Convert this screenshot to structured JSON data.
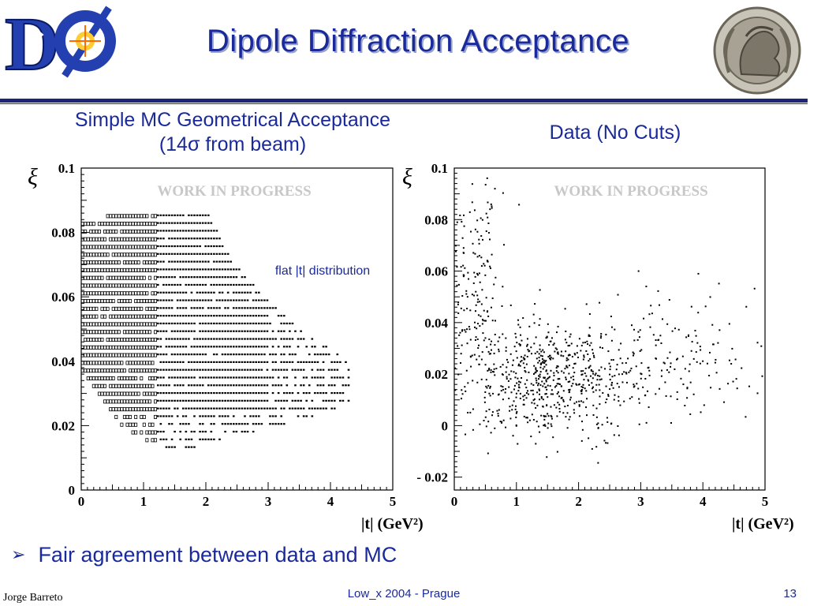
{
  "slide": {
    "title": "Dipole Diffraction Acceptance",
    "subtitle_left_line1": "Simple MC Geometrical Acceptance",
    "subtitle_left_line2": "(14σ from beam)",
    "subtitle_right": "Data (No Cuts)",
    "bullet": "Fair agreement between data and MC",
    "footer_author": "Jorge Barreto",
    "footer_event": "Low_x 2004 - Prague",
    "page_number": "13"
  },
  "chart_data": [
    {
      "type": "scatter",
      "title": "",
      "xlabel": "|t| (GeV²)",
      "ylabel": "ξ",
      "xlim": [
        0,
        5
      ],
      "ylim": [
        0,
        0.1
      ],
      "x_ticks": [
        "0",
        "1",
        "2",
        "3",
        "4",
        "5"
      ],
      "y_ticks": [
        "0",
        "0.02",
        "0.04",
        "0.06",
        "0.08",
        "0.1"
      ],
      "watermark": "WORK IN PROGRESS",
      "annotation": "flat |t| distribution",
      "grid": false,
      "acceptance_boundary": [
        [
          0,
          0.085
        ],
        [
          2,
          0.088
        ],
        [
          2.3,
          0.075
        ],
        [
          2.7,
          0.065
        ],
        [
          3.5,
          0.05
        ],
        [
          4.3,
          0.04
        ],
        [
          4.3,
          0.027
        ],
        [
          3.5,
          0.022
        ],
        [
          2.5,
          0.017
        ],
        [
          1.5,
          0.012
        ],
        [
          0.7,
          0.018
        ],
        [
          0,
          0.037
        ]
      ]
    },
    {
      "type": "scatter",
      "title": "",
      "xlabel": "|t| (GeV²)",
      "ylabel": "ξ",
      "xlim": [
        0,
        5
      ],
      "ylim": [
        -0.025,
        0.1
      ],
      "x_ticks": [
        "0",
        "1",
        "2",
        "3",
        "4",
        "5"
      ],
      "y_ticks": [
        "- 0.02",
        "0",
        "0.02",
        "0.04",
        "0.06",
        "0.08",
        "0.1"
      ],
      "watermark": "WORK IN PROGRESS",
      "grid": false,
      "clusters": [
        {
          "x_mean": 1.5,
          "x_sd": 0.7,
          "y_mean": 0.018,
          "y_sd": 0.012,
          "count": 600
        },
        {
          "x_mean": 0.3,
          "x_sd": 0.25,
          "y_mean": 0.055,
          "y_sd": 0.02,
          "count": 180
        },
        {
          "x_mean": 3.3,
          "x_sd": 1.0,
          "y_mean": 0.025,
          "y_sd": 0.012,
          "count": 200
        }
      ]
    }
  ]
}
